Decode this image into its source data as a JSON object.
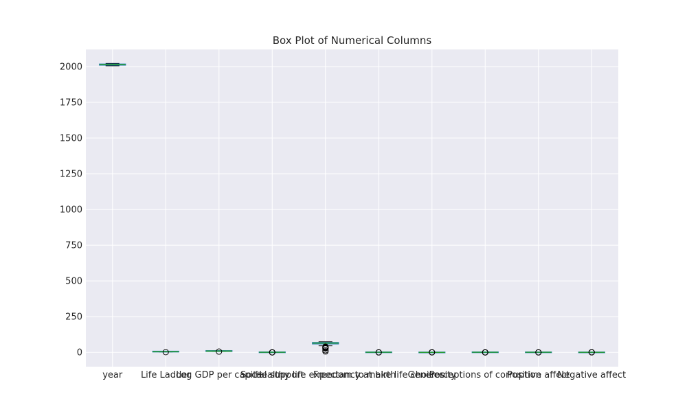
{
  "chart_data": {
    "type": "box",
    "title": "Box Plot of Numerical Columns",
    "xlabel": "",
    "ylabel": "",
    "ylim": [
      -100,
      2120
    ],
    "yticks": [
      0,
      250,
      500,
      750,
      1000,
      1250,
      1500,
      1750,
      2000
    ],
    "grid": true,
    "categories": [
      "year",
      "Life Ladder",
      "Log GDP per capita",
      "Social support",
      "Healthy life expectancy at birth",
      "Freedom to make life choices",
      "Generosity",
      "Perceptions of corruption",
      "Positive affect",
      "Negative affect"
    ],
    "boxes": [
      {
        "whislo": 2005,
        "q1": 2010,
        "med": 2014,
        "q3": 2018,
        "whishi": 2022,
        "fliers": []
      },
      {
        "whislo": 2.5,
        "q1": 4.6,
        "med": 5.4,
        "q3": 6.2,
        "whishi": 8.0,
        "fliers": [
          1.5
        ]
      },
      {
        "whislo": 6.6,
        "q1": 8.4,
        "med": 9.4,
        "q3": 10.4,
        "whishi": 11.7,
        "fliers": [
          5.5
        ]
      },
      {
        "whislo": 0.48,
        "q1": 0.75,
        "med": 0.83,
        "q3": 0.9,
        "whishi": 0.99,
        "fliers": [
          0.23,
          0.3,
          0.38,
          0.44
        ]
      },
      {
        "whislo": 46,
        "q1": 59,
        "med": 65,
        "q3": 69,
        "whishi": 74,
        "fliers": [
          40,
          38,
          35,
          32,
          28,
          15,
          6.7
        ]
      },
      {
        "whislo": 0.4,
        "q1": 0.66,
        "med": 0.77,
        "q3": 0.86,
        "whishi": 0.99,
        "fliers": [
          0.23,
          0.28,
          0.32
        ]
      },
      {
        "whislo": -0.34,
        "q1": -0.11,
        "med": -0.02,
        "q3": 0.09,
        "whishi": 0.4,
        "fliers": [
          0.5,
          0.6,
          0.7
        ]
      },
      {
        "whislo": 0.35,
        "q1": 0.69,
        "med": 0.8,
        "q3": 0.87,
        "whishi": 0.98,
        "fliers": [
          0.04,
          0.1,
          0.18,
          0.26
        ]
      },
      {
        "whislo": 0.36,
        "q1": 0.57,
        "med": 0.66,
        "q3": 0.74,
        "whishi": 0.88,
        "fliers": [
          0.18,
          0.25,
          0.3
        ]
      },
      {
        "whislo": 0.08,
        "q1": 0.21,
        "med": 0.26,
        "q3": 0.33,
        "whishi": 0.5,
        "fliers": [
          0.6,
          0.65,
          0.7
        ]
      }
    ],
    "colors": {
      "background": "#eaeaf2",
      "grid": "#ffffff",
      "box": "#1f77b4",
      "whisker": "#1f77b4",
      "cap": "#000000",
      "median": "#2ca02c",
      "flier": "#000000"
    }
  }
}
